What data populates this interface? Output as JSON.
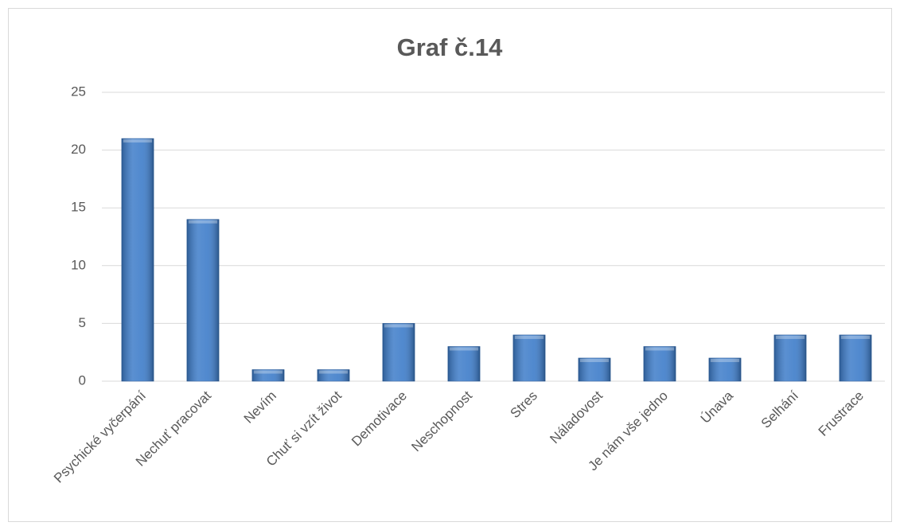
{
  "chart_data": {
    "type": "bar",
    "title": "Graf č.14",
    "categories": [
      "Psychické vyčerpání",
      "Nechuť pracovat",
      "Nevím",
      "Chuť si vzít život",
      "Demotivace",
      "Neschopnost",
      "Stres",
      "Náladovost",
      "Je nám vše jedno",
      "Únava",
      "Selhání",
      "Frustrace"
    ],
    "values": [
      21,
      14,
      1,
      1,
      5,
      3,
      4,
      2,
      3,
      2,
      4,
      4
    ],
    "color": "#3d7cc9",
    "ylim": [
      0,
      25
    ],
    "yticks": [
      0,
      5,
      10,
      15,
      20,
      25
    ],
    "grid": true
  }
}
